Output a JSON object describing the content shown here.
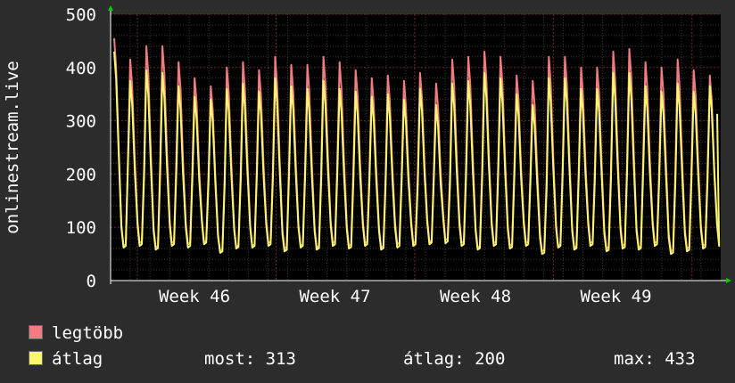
{
  "chart_data": {
    "type": "line",
    "ylabel": "onlinestream.live",
    "ylim": [
      0,
      500
    ],
    "y_ticks": [
      "0",
      "100",
      "200",
      "300",
      "400",
      "500"
    ],
    "x_ticks": [
      "Week 46",
      "Week 47",
      "Week 48",
      "Week 49"
    ],
    "grid": true,
    "colors": {
      "background": "#2c2c2c",
      "plot": "#000000",
      "grid_major": "#6e2b2b",
      "grid_minor": "#3a3a3a",
      "axis": "#ffffff",
      "arrow": "#00cc00"
    },
    "series": [
      {
        "name": "legtöbb",
        "color": "#f07c80",
        "peaks": [
          455,
          415,
          440,
          440,
          410,
          380,
          365,
          400,
          410,
          395,
          420,
          405,
          405,
          420,
          410,
          395,
          380,
          385,
          375,
          390,
          370,
          415,
          420,
          430,
          420,
          385,
          375,
          420,
          420,
          400,
          400,
          430,
          435,
          410,
          400,
          415,
          395,
          385
        ],
        "troughs": [
          65,
          70,
          62,
          70,
          68,
          72,
          55,
          63,
          65,
          70,
          60,
          65,
          62,
          70,
          65,
          70,
          62,
          68,
          70,
          72,
          75,
          70,
          62,
          70,
          65,
          70,
          55,
          65,
          62,
          70,
          60,
          65,
          62,
          70,
          55,
          60,
          65,
          70
        ]
      },
      {
        "name": "átlag",
        "color": "#f8f870",
        "peaks": [
          430,
          375,
          395,
          390,
          365,
          345,
          340,
          360,
          370,
          355,
          380,
          365,
          360,
          375,
          360,
          355,
          345,
          350,
          340,
          360,
          330,
          370,
          375,
          390,
          380,
          350,
          330,
          380,
          380,
          360,
          360,
          390,
          390,
          365,
          355,
          370,
          355,
          365
        ],
        "troughs": [
          62,
          65,
          58,
          65,
          62,
          68,
          52,
          60,
          62,
          65,
          55,
          62,
          58,
          65,
          60,
          65,
          58,
          62,
          65,
          68,
          70,
          65,
          58,
          65,
          60,
          65,
          50,
          62,
          58,
          65,
          55,
          60,
          58,
          65,
          50,
          55,
          60,
          65
        ],
        "last": 313
      }
    ]
  },
  "legend": {
    "max_label": "legtöbb",
    "avg_label": "átlag",
    "now": "most: 313",
    "average": "átlag: 200",
    "maximum": "max: 433"
  }
}
